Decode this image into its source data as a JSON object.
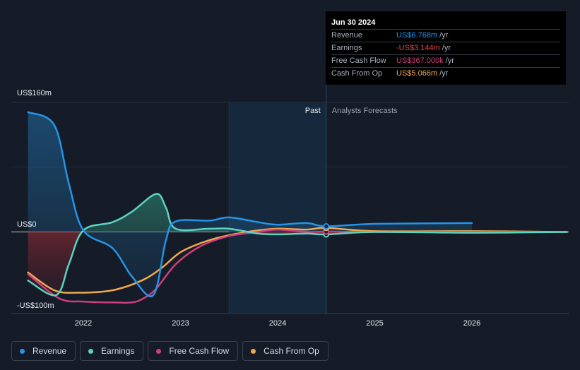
{
  "chart_data": {
    "type": "line",
    "y_labels": [
      "US$160m",
      "US$0",
      "-US$100m"
    ],
    "ylim": [
      -100,
      160
    ],
    "xlim": [
      2021.2,
      2026.98
    ],
    "x_ticks": [
      {
        "value": 2022,
        "label": "2022"
      },
      {
        "value": 2023,
        "label": "2023"
      },
      {
        "value": 2024,
        "label": "2024"
      },
      {
        "value": 2025,
        "label": "2025"
      },
      {
        "value": 2026,
        "label": "2026"
      }
    ],
    "past_start": 2023.5,
    "past_end": 2024.5,
    "past_label": "Past",
    "forecast_label": "Analysts Forecasts",
    "series": [
      {
        "name": "Revenue",
        "color": "#2494e8",
        "points": [
          [
            2021.43,
            148
          ],
          [
            2021.7,
            132
          ],
          [
            2021.85,
            60
          ],
          [
            2022.0,
            2
          ],
          [
            2022.3,
            -20
          ],
          [
            2022.5,
            -55
          ],
          [
            2022.72,
            -78
          ],
          [
            2022.85,
            -10
          ],
          [
            2022.95,
            13
          ],
          [
            2023.3,
            14
          ],
          [
            2023.5,
            18
          ],
          [
            2023.8,
            12
          ],
          [
            2024.0,
            9
          ],
          [
            2024.3,
            11
          ],
          [
            2024.5,
            7
          ],
          [
            2025.0,
            10
          ],
          [
            2026.0,
            11
          ]
        ]
      },
      {
        "name": "Earnings",
        "color": "#5cd3c0",
        "points": [
          [
            2021.43,
            -60
          ],
          [
            2021.72,
            -78
          ],
          [
            2021.85,
            -40
          ],
          [
            2022.0,
            2
          ],
          [
            2022.3,
            12
          ],
          [
            2022.5,
            25
          ],
          [
            2022.75,
            47
          ],
          [
            2022.85,
            30
          ],
          [
            2022.95,
            4
          ],
          [
            2023.3,
            4
          ],
          [
            2023.5,
            4
          ],
          [
            2023.8,
            -2
          ],
          [
            2024.0,
            -3
          ],
          [
            2024.3,
            -2
          ],
          [
            2024.5,
            -3
          ],
          [
            2025.0,
            0
          ],
          [
            2026.0,
            -1
          ],
          [
            2026.98,
            0
          ]
        ]
      },
      {
        "name": "Free Cash Flow",
        "color": "#cf3f7e",
        "points": [
          [
            2021.43,
            -52
          ],
          [
            2021.75,
            -82
          ],
          [
            2022.0,
            -86
          ],
          [
            2022.3,
            -87
          ],
          [
            2022.5,
            -87
          ],
          [
            2022.62,
            -82
          ],
          [
            2022.75,
            -70
          ],
          [
            2022.95,
            -40
          ],
          [
            2023.2,
            -18
          ],
          [
            2023.5,
            -5
          ],
          [
            2023.8,
            0
          ],
          [
            2024.0,
            3
          ],
          [
            2024.3,
            0
          ],
          [
            2024.5,
            0.4
          ],
          [
            2025.0,
            0
          ],
          [
            2026.0,
            0
          ],
          [
            2026.98,
            0
          ]
        ]
      },
      {
        "name": "Cash From Op",
        "color": "#f1a94f",
        "points": [
          [
            2021.43,
            -50
          ],
          [
            2021.7,
            -72
          ],
          [
            2021.95,
            -75
          ],
          [
            2022.3,
            -72
          ],
          [
            2022.6,
            -60
          ],
          [
            2022.8,
            -45
          ],
          [
            2023.0,
            -25
          ],
          [
            2023.25,
            -12
          ],
          [
            2023.5,
            -4
          ],
          [
            2023.8,
            2
          ],
          [
            2024.0,
            4
          ],
          [
            2024.3,
            3
          ],
          [
            2024.5,
            5
          ],
          [
            2025.0,
            1
          ],
          [
            2026.0,
            1
          ],
          [
            2026.98,
            0
          ]
        ]
      }
    ],
    "tooltip": {
      "date": "Jun 30 2024",
      "rows": [
        {
          "label": "Revenue",
          "value": "US$6.768m",
          "unit": "/yr",
          "color": "#2494e8"
        },
        {
          "label": "Earnings",
          "value": "-US$3.144m",
          "unit": "/yr",
          "color": "#e5404a"
        },
        {
          "label": "Free Cash Flow",
          "value": "US$367.000k",
          "unit": "/yr",
          "color": "#cf3f7e"
        },
        {
          "label": "Cash From Op",
          "value": "US$5.066m",
          "unit": "/yr",
          "color": "#f1a94f"
        }
      ]
    },
    "legend": [
      {
        "name": "Revenue",
        "color": "#2494e8"
      },
      {
        "name": "Earnings",
        "color": "#5cd3c0"
      },
      {
        "name": "Free Cash Flow",
        "color": "#cf3f7e"
      },
      {
        "name": "Cash From Op",
        "color": "#f1a94f"
      }
    ]
  }
}
